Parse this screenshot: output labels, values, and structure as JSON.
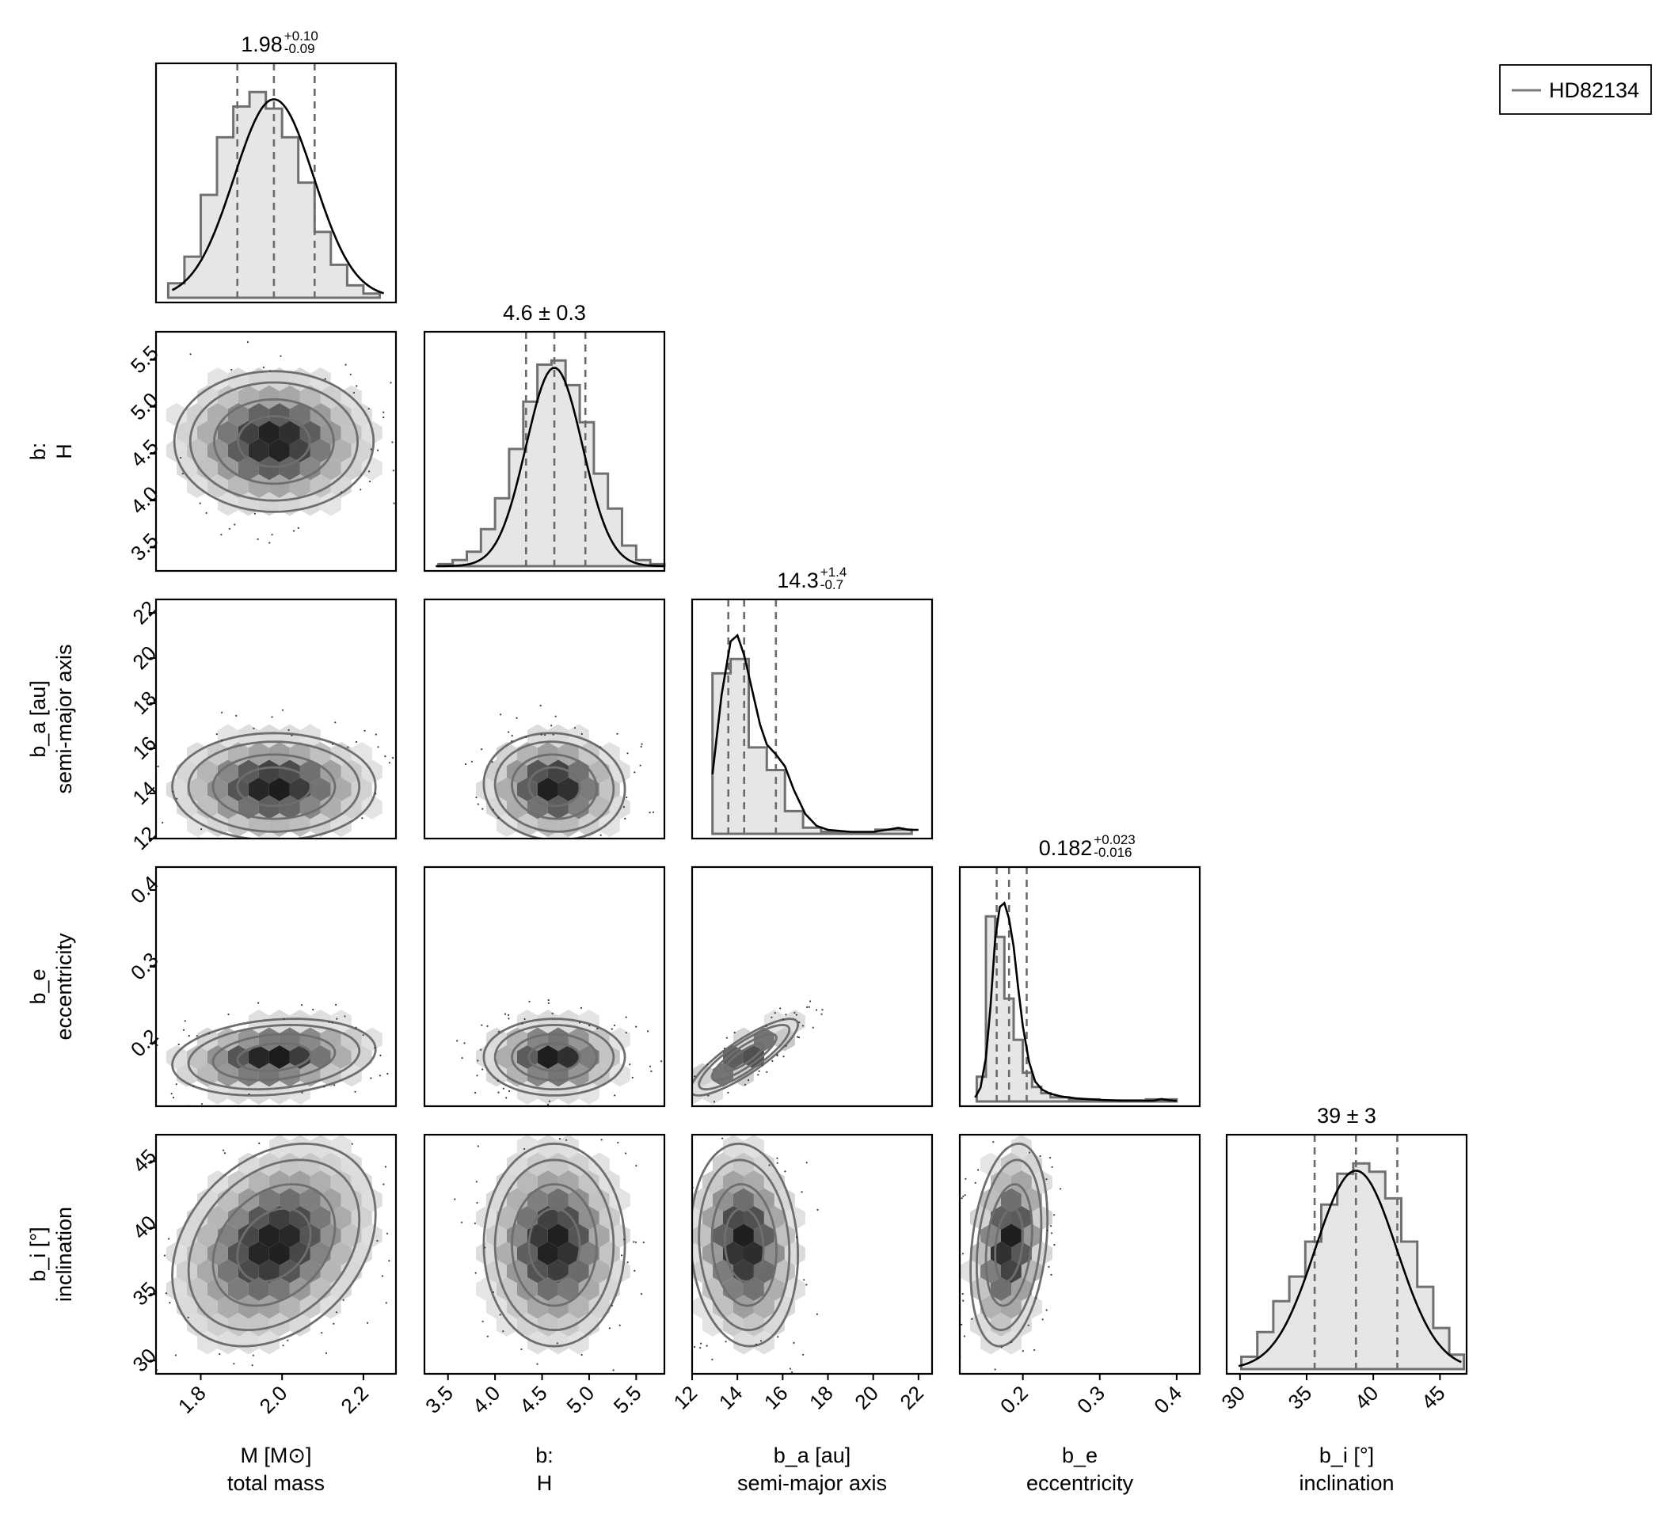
{
  "colors": {
    "hist_fill": "#e6e6e6",
    "hist_edge": "#707070",
    "kde_line": "#000000",
    "quantile": "#6b6b6b",
    "contour": "#6e6e6e",
    "density_dark": "#1a1a1a",
    "density_light": "#f2f2f2"
  },
  "legend": {
    "entries": [
      {
        "label": "HD82134",
        "color": "#7a7a7a"
      }
    ],
    "placement": "top-right"
  },
  "chart_data": {
    "type": "corner",
    "parameters": [
      {
        "id": "M",
        "label_line1": "M [M⊙]",
        "label_line2": "total mass",
        "range": [
          1.69,
          2.28
        ],
        "ticks": [
          1.8,
          2.0,
          2.2
        ],
        "tick_labels": [
          "1.8",
          "2.0",
          "2.2"
        ],
        "title_main": "1.98",
        "title_plus": "+0.10",
        "title_minus": "-0.09",
        "quantiles": [
          1.89,
          1.98,
          2.08
        ],
        "kde": {
          "mean": 1.98,
          "sd": 0.098,
          "xmin": 1.73,
          "xmax": 2.25
        },
        "hist_edges": [
          1.72,
          1.76,
          1.8,
          1.84,
          1.88,
          1.92,
          1.96,
          2.0,
          2.04,
          2.08,
          2.12,
          2.16,
          2.2,
          2.24
        ],
        "hist_heights": [
          0.07,
          0.2,
          0.5,
          0.78,
          0.93,
          1.0,
          0.92,
          0.78,
          0.56,
          0.32,
          0.16,
          0.06,
          0.02
        ]
      },
      {
        "id": "H",
        "label_line1": "b:",
        "label_line2": "H",
        "range": [
          3.25,
          5.8
        ],
        "ticks": [
          3.5,
          4.0,
          4.5,
          5.0,
          5.5
        ],
        "tick_labels": [
          "3.5",
          "4.0",
          "4.5",
          "5.0",
          "5.5"
        ],
        "title_text": "4.6 ± 0.3",
        "quantiles": [
          4.33,
          4.63,
          4.96
        ],
        "kde": {
          "mean": 4.63,
          "sd": 0.3,
          "xmin": 3.37,
          "xmax": 5.8
        },
        "hist_edges": [
          3.4,
          3.55,
          3.7,
          3.85,
          4.0,
          4.15,
          4.3,
          4.45,
          4.6,
          4.75,
          4.9,
          5.05,
          5.2,
          5.35,
          5.5,
          5.65,
          5.8
        ],
        "hist_heights": [
          0.01,
          0.03,
          0.07,
          0.18,
          0.33,
          0.57,
          0.8,
          0.98,
          1.0,
          0.88,
          0.7,
          0.45,
          0.28,
          0.1,
          0.03,
          0.01
        ]
      },
      {
        "id": "a",
        "label_line1": "b_a [au]",
        "label_line2": "semi-major axis",
        "range": [
          12,
          22.6
        ],
        "ticks": [
          12,
          14,
          16,
          18,
          20,
          22
        ],
        "tick_labels": [
          "12",
          "14",
          "16",
          "18",
          "20",
          "22"
        ],
        "title_main": "14.3",
        "title_plus": "+1.4",
        "title_minus": "-0.7",
        "quantiles": [
          13.6,
          14.3,
          15.7
        ],
        "kde_points": [
          [
            12.9,
            0.3
          ],
          [
            13.3,
            0.7
          ],
          [
            13.7,
            0.97
          ],
          [
            14.0,
            1.0
          ],
          [
            14.3,
            0.9
          ],
          [
            14.7,
            0.7
          ],
          [
            15.0,
            0.55
          ],
          [
            15.3,
            0.45
          ],
          [
            15.7,
            0.4
          ],
          [
            16.1,
            0.34
          ],
          [
            16.5,
            0.22
          ],
          [
            17.0,
            0.1
          ],
          [
            17.5,
            0.04
          ],
          [
            18.0,
            0.02
          ],
          [
            19.0,
            0.01
          ],
          [
            20.0,
            0.01
          ],
          [
            20.6,
            0.02
          ],
          [
            21.1,
            0.03
          ],
          [
            21.6,
            0.02
          ],
          [
            22.0,
            0.02
          ]
        ],
        "hist_edges": [
          12.9,
          13.7,
          14.5,
          15.3,
          16.1,
          16.9,
          17.7,
          18.5,
          19.3,
          20.1,
          20.9,
          21.7
        ],
        "hist_heights": [
          0.78,
          0.85,
          0.42,
          0.31,
          0.11,
          0.03,
          0.01,
          0.005,
          0.005,
          0.02,
          0.02
        ]
      },
      {
        "id": "e",
        "label_line1": "b_e",
        "label_line2": "eccentricity",
        "range": [
          0.118,
          0.43
        ],
        "ticks": [
          0.2,
          0.3,
          0.4
        ],
        "tick_labels": [
          "0.2",
          "0.3",
          "0.4"
        ],
        "title_main": "0.182",
        "title_plus": "+0.023",
        "title_minus": "-0.016",
        "quantiles": [
          0.166,
          0.182,
          0.205
        ],
        "kde_points": [
          [
            0.138,
            0.02
          ],
          [
            0.145,
            0.07
          ],
          [
            0.152,
            0.22
          ],
          [
            0.158,
            0.48
          ],
          [
            0.164,
            0.82
          ],
          [
            0.17,
            0.98
          ],
          [
            0.176,
            1.0
          ],
          [
            0.182,
            0.92
          ],
          [
            0.188,
            0.78
          ],
          [
            0.194,
            0.57
          ],
          [
            0.2,
            0.38
          ],
          [
            0.208,
            0.2
          ],
          [
            0.216,
            0.1
          ],
          [
            0.225,
            0.06
          ],
          [
            0.235,
            0.04
          ],
          [
            0.25,
            0.025
          ],
          [
            0.27,
            0.015
          ],
          [
            0.3,
            0.008
          ],
          [
            0.33,
            0.004
          ],
          [
            0.37,
            0.004
          ],
          [
            0.38,
            0.012
          ],
          [
            0.39,
            0.006
          ],
          [
            0.4,
            0.003
          ]
        ],
        "hist_edges": [
          0.14,
          0.152,
          0.164,
          0.176,
          0.188,
          0.2,
          0.212,
          0.224,
          0.236,
          0.26,
          0.3,
          0.36,
          0.4
        ],
        "hist_heights": [
          0.12,
          0.9,
          0.8,
          0.5,
          0.3,
          0.14,
          0.07,
          0.04,
          0.02,
          0.01,
          0.005,
          0.01
        ]
      },
      {
        "id": "i",
        "label_line1": "b_i [°]",
        "label_line2": "inclination",
        "range": [
          29,
          47
        ],
        "ticks": [
          30,
          35,
          40,
          45
        ],
        "tick_labels": [
          "30",
          "35",
          "40",
          "45"
        ],
        "title_text": "39 ± 3",
        "quantiles": [
          35.6,
          38.7,
          41.8
        ],
        "kde": {
          "mean": 38.7,
          "sd": 3.05,
          "xmin": 29.9,
          "xmax": 46.6
        },
        "hist_edges": [
          30.1,
          31.3,
          32.5,
          33.7,
          34.9,
          36.1,
          37.3,
          38.5,
          39.7,
          40.9,
          42.1,
          43.3,
          44.5,
          45.7,
          46.8
        ],
        "hist_heights": [
          0.06,
          0.18,
          0.33,
          0.45,
          0.62,
          0.8,
          0.95,
          1.0,
          0.96,
          0.83,
          0.62,
          0.4,
          0.2,
          0.07
        ]
      }
    ],
    "pairs": [
      {
        "x": "M",
        "y": "H",
        "center": [
          1.98,
          4.63
        ],
        "sd": [
          0.098,
          0.3
        ],
        "corr": 0.0
      },
      {
        "x": "M",
        "y": "a",
        "center": [
          1.98,
          14.3
        ],
        "sd": [
          0.1,
          0.95
        ],
        "corr": 0.0
      },
      {
        "x": "H",
        "y": "a",
        "center": [
          4.63,
          14.3
        ],
        "sd": [
          0.3,
          0.95
        ],
        "corr": -0.05
      },
      {
        "x": "M",
        "y": "e",
        "center": [
          1.98,
          0.182
        ],
        "sd": [
          0.1,
          0.02
        ],
        "corr": 0.2
      },
      {
        "x": "H",
        "y": "e",
        "center": [
          4.63,
          0.182
        ],
        "sd": [
          0.3,
          0.02
        ],
        "corr": 0.0
      },
      {
        "x": "a",
        "y": "e",
        "center": [
          14.3,
          0.182
        ],
        "sd": [
          0.95,
          0.02
        ],
        "corr": 0.85
      },
      {
        "x": "M",
        "y": "i",
        "center": [
          1.98,
          38.7
        ],
        "sd": [
          0.1,
          3.05
        ],
        "corr": 0.3
      },
      {
        "x": "H",
        "y": "i",
        "center": [
          4.63,
          38.7
        ],
        "sd": [
          0.3,
          3.05
        ],
        "corr": 0.0
      },
      {
        "x": "a",
        "y": "i",
        "center": [
          14.3,
          38.7
        ],
        "sd": [
          0.95,
          3.05
        ],
        "corr": -0.1
      },
      {
        "x": "e",
        "y": "i",
        "center": [
          0.182,
          38.7
        ],
        "sd": [
          0.02,
          3.05
        ],
        "corr": 0.25
      }
    ]
  }
}
